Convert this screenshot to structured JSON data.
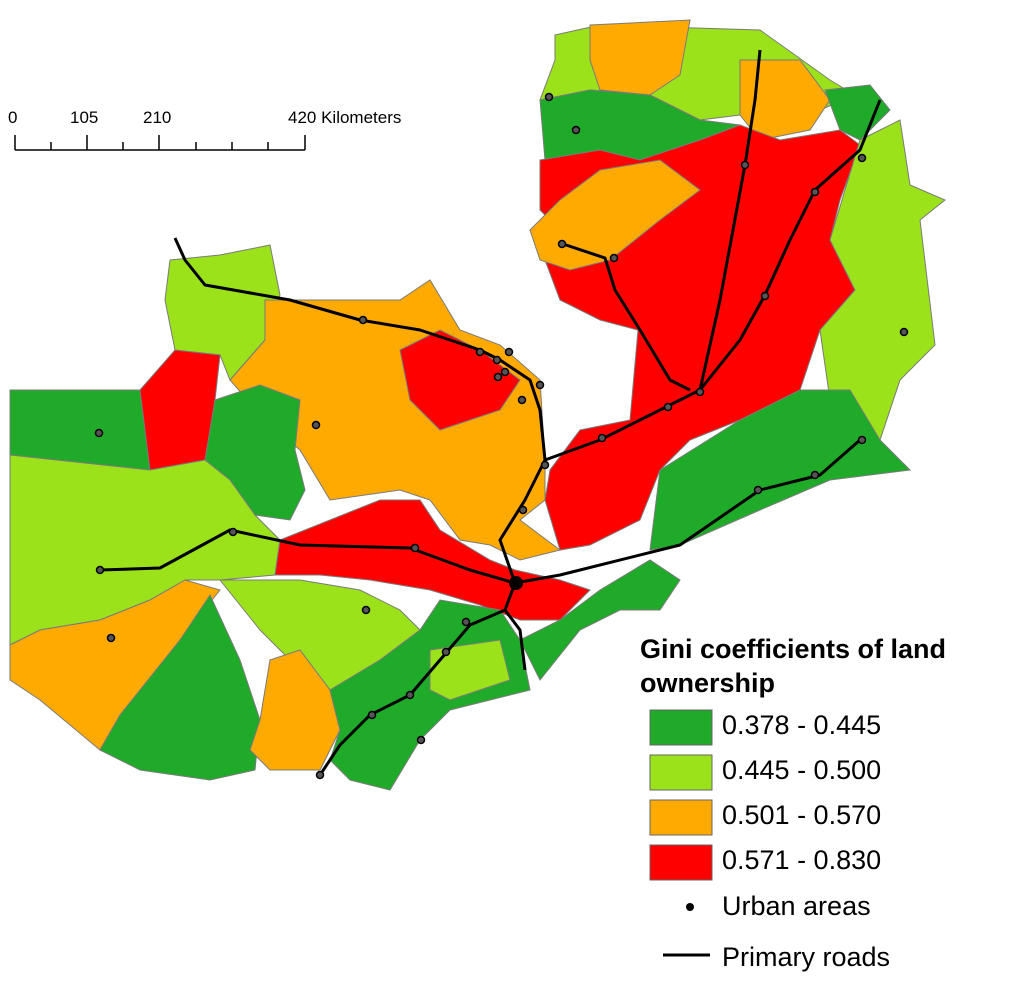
{
  "scale_bar": {
    "labels": [
      "0",
      "105",
      "210",
      "420 Kilometers"
    ]
  },
  "legend": {
    "title": "Gini coefficients of land ownership",
    "classes": [
      {
        "label": "0.378 - 0.445",
        "color": "#1faa2a"
      },
      {
        "label": "0.445 - 0.500",
        "color": "#9be21a"
      },
      {
        "label": "0.501 - 0.570",
        "color": "#ffaa00"
      },
      {
        "label": "0.571 - 0.830",
        "color": "#ff0000"
      }
    ],
    "urban": "Urban areas",
    "roads": "Primary roads"
  }
}
